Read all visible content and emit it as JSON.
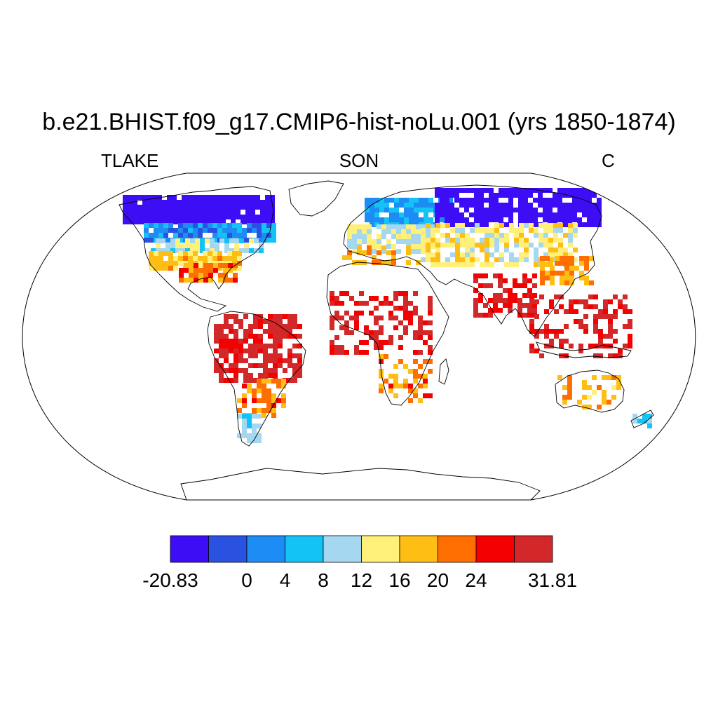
{
  "title": "b.e21.BHIST.f09_g17.CMIP6-hist-noLu.001 (yrs 1850-1874)",
  "left_label": "TLAKE",
  "center_label": "SON",
  "right_label": "C",
  "colorbar": {
    "colors": [
      "#3d0ef5",
      "#2a52e0",
      "#1e8cf5",
      "#14c3f5",
      "#a5d7f0",
      "#fff07a",
      "#ffbe14",
      "#ff6e00",
      "#f50000",
      "#d2282a"
    ],
    "tick_labels": [
      "-20.83",
      "0",
      "4",
      "8",
      "12",
      "16",
      "20",
      "24",
      "31.81"
    ]
  },
  "chart_data": {
    "type": "heatmap",
    "variable": "TLAKE",
    "season": "SON",
    "units": "C",
    "levels": [
      -20.83,
      -4,
      0,
      4,
      8,
      12,
      16,
      20,
      24,
      28,
      31.81
    ],
    "vmin": -20.83,
    "vmax": 31.81,
    "regions": [
      {
        "region": "Canadian Arctic / northern Canada",
        "value": -10
      },
      {
        "region": "Central Canada",
        "value": 2
      },
      {
        "region": "Southern Canada",
        "value": 10
      },
      {
        "region": "Central United States",
        "value": 17
      },
      {
        "region": "Southeastern United States",
        "value": 22
      },
      {
        "region": "Amazon basin",
        "value": 30
      },
      {
        "region": "Southern Brazil / Uruguay",
        "value": 21
      },
      {
        "region": "Patagonia",
        "value": 8
      },
      {
        "region": "Scandinavia",
        "value": 4
      },
      {
        "region": "Central Europe",
        "value": 12
      },
      {
        "region": "Iberia / Mediterranean",
        "value": 20
      },
      {
        "region": "Siberia",
        "value": -8
      },
      {
        "region": "Central Asia",
        "value": 14
      },
      {
        "region": "India",
        "value": 28
      },
      {
        "region": "Tropical Africa",
        "value": 29
      },
      {
        "region": "Southern Africa",
        "value": 21
      },
      {
        "region": "Eastern China",
        "value": 20
      },
      {
        "region": "Southeast Asia",
        "value": 29
      },
      {
        "region": "Australia",
        "value": 19
      },
      {
        "region": "New Zealand",
        "value": 8
      }
    ]
  }
}
